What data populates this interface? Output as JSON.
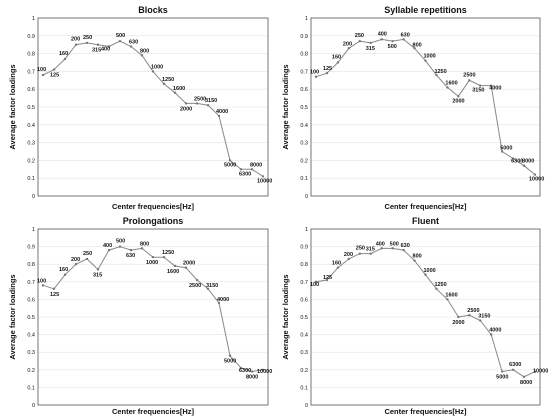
{
  "chart_data": [
    {
      "type": "line",
      "title": "Blocks",
      "xlabel": "Center frequencies[Hz]",
      "ylabel": "Average factor loadings",
      "ylim": [
        0,
        1
      ],
      "yticks": [
        "0",
        "0.1",
        "0.2",
        "0.3",
        "0.4",
        "0.5",
        "0.6",
        "0.7",
        "0.8",
        "0.9",
        "1"
      ],
      "grid": true,
      "categories": [
        "100",
        "125",
        "160",
        "200",
        "250",
        "315",
        "400",
        "500",
        "630",
        "800",
        "1000",
        "1250",
        "1600",
        "2000",
        "2500",
        "3150",
        "4000",
        "5000",
        "6300",
        "8000",
        "10000"
      ],
      "values": [
        0.68,
        0.71,
        0.77,
        0.85,
        0.86,
        0.85,
        0.84,
        0.87,
        0.84,
        0.79,
        0.7,
        0.63,
        0.58,
        0.52,
        0.52,
        0.51,
        0.45,
        0.2,
        0.15,
        0.15,
        0.11
      ]
    },
    {
      "type": "line",
      "title": "Syllable repetitions",
      "xlabel": "Center frequencies[Hz]",
      "ylabel": "Average factor loadings",
      "ylim": [
        0,
        1
      ],
      "yticks": [
        "0",
        "0.1",
        "0.2",
        "0.3",
        "0.4",
        "0.5",
        "0.6",
        "0.7",
        "0.8",
        "0.9",
        "1"
      ],
      "grid": true,
      "categories": [
        "100",
        "125",
        "160",
        "200",
        "250",
        "315",
        "400",
        "500",
        "630",
        "800",
        "1000",
        "1250",
        "1600",
        "2000",
        "2500",
        "3150",
        "4000",
        "5000",
        "6300",
        "8000",
        "10000"
      ],
      "values": [
        0.67,
        0.69,
        0.75,
        0.83,
        0.87,
        0.86,
        0.88,
        0.87,
        0.88,
        0.83,
        0.76,
        0.68,
        0.61,
        0.56,
        0.65,
        0.62,
        0.62,
        0.25,
        0.21,
        0.17,
        0.12
      ]
    },
    {
      "type": "line",
      "title": "Prolongations",
      "xlabel": "Center frequencies[Hz]",
      "ylabel": "Average factor loadings",
      "ylim": [
        0,
        1
      ],
      "yticks": [
        "0",
        "0.1",
        "0.2",
        "0.3",
        "0.4",
        "0.5",
        "0.6",
        "0.7",
        "0.8",
        "0.9",
        "1"
      ],
      "grid": true,
      "categories": [
        "100",
        "125",
        "160",
        "200",
        "250",
        "315",
        "400",
        "500",
        "630",
        "800",
        "1000",
        "1250",
        "1600",
        "2000",
        "2500",
        "3150",
        "4000",
        "5000",
        "6300",
        "8000",
        "10000"
      ],
      "values": [
        0.68,
        0.66,
        0.74,
        0.8,
        0.83,
        0.77,
        0.88,
        0.9,
        0.88,
        0.89,
        0.84,
        0.84,
        0.79,
        0.78,
        0.71,
        0.66,
        0.58,
        0.28,
        0.21,
        0.19,
        0.2
      ]
    },
    {
      "type": "line",
      "title": "Fluent",
      "xlabel": "Center frequencies[Hz]",
      "ylabel": "Average factor loadings",
      "ylim": [
        0,
        1
      ],
      "yticks": [
        "0",
        "0.1",
        "0.2",
        "0.3",
        "0.4",
        "0.5",
        "0.6",
        "0.7",
        "0.8",
        "0.9",
        "1"
      ],
      "grid": true,
      "categories": [
        "100",
        "125",
        "160",
        "200",
        "250",
        "315",
        "400",
        "500",
        "630",
        "800",
        "1000",
        "1250",
        "1600",
        "2000",
        "2500",
        "3150",
        "4000",
        "5000",
        "6300",
        "8000",
        "10000"
      ],
      "values": [
        0.7,
        0.71,
        0.78,
        0.83,
        0.86,
        0.86,
        0.89,
        0.89,
        0.88,
        0.82,
        0.74,
        0.66,
        0.6,
        0.5,
        0.51,
        0.48,
        0.4,
        0.19,
        0.2,
        0.16,
        0.19
      ]
    }
  ]
}
